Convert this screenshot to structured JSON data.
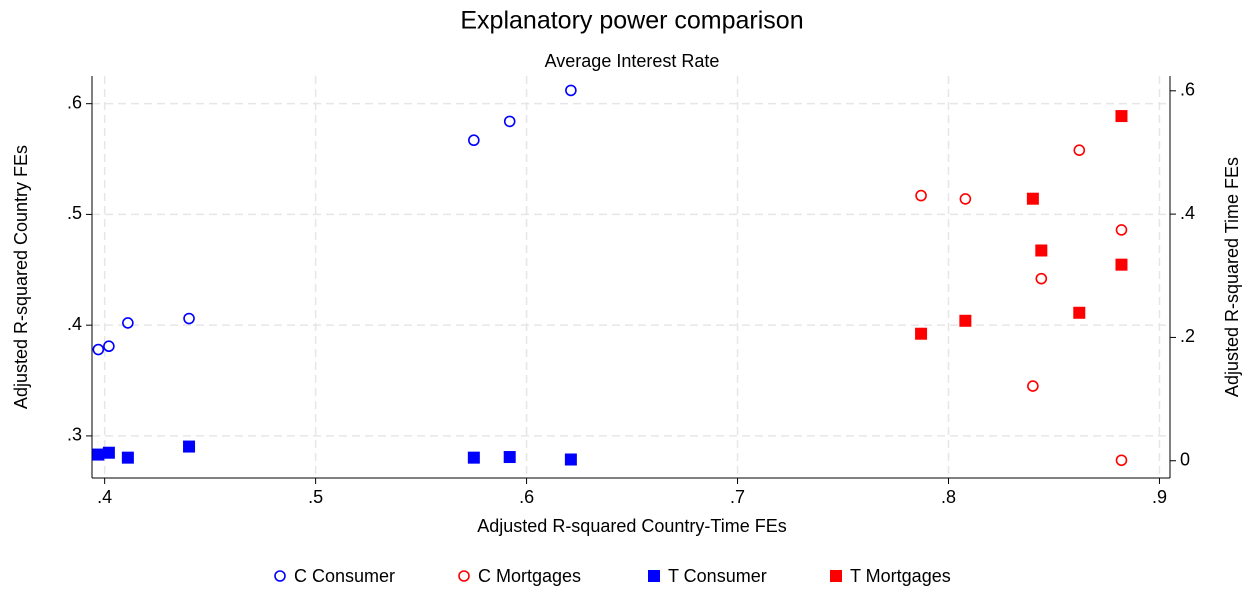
{
  "chart_data": {
    "type": "scatter",
    "title": "Explanatory power comparison",
    "subtitle": "Average Interest Rate",
    "x_label": "Adjusted R-squared Country-Time FEs",
    "y_label": "Adjusted R-squared Country FEs",
    "y2_label": "Adjusted R-squared Time FEs",
    "xlim": [
      0.394,
      0.905
    ],
    "xticks": [
      {
        "value": 0.4,
        "label": ".4"
      },
      {
        "value": 0.5,
        "label": ".5"
      },
      {
        "value": 0.6,
        "label": ".6"
      },
      {
        "value": 0.7,
        "label": ".7"
      },
      {
        "value": 0.8,
        "label": ".8"
      },
      {
        "value": 0.9,
        "label": ".9"
      }
    ],
    "ylim": [
      0.262,
      0.625
    ],
    "yticks": [
      {
        "value": 0.3,
        "label": ".3"
      },
      {
        "value": 0.4,
        "label": ".4"
      },
      {
        "value": 0.5,
        "label": ".5"
      },
      {
        "value": 0.6,
        "label": ".6"
      }
    ],
    "y2lim": [
      -0.028,
      0.624
    ],
    "y2ticks": [
      0,
      {
        "value": 0.2,
        "label": ".2"
      },
      {
        "value": 0.4,
        "label": ".4"
      },
      {
        "value": 0.6,
        "label": ".6"
      }
    ],
    "grid": true,
    "legend": "bottom",
    "series": [
      {
        "name": "C Consumer",
        "color": "#0000ff",
        "marker": "circle-open",
        "axis": "y",
        "x": [
          0.397,
          0.402,
          0.411,
          0.44,
          0.575,
          0.592,
          0.621
        ],
        "values": [
          0.378,
          0.381,
          0.402,
          0.406,
          0.567,
          0.584,
          0.612
        ]
      },
      {
        "name": "C Mortgages",
        "color": "#ff0000",
        "marker": "circle-open",
        "axis": "y",
        "x": [
          0.787,
          0.808,
          0.84,
          0.844,
          0.862,
          0.882,
          0.882
        ],
        "values": [
          0.517,
          0.514,
          0.345,
          0.442,
          0.558,
          0.486,
          0.278
        ]
      },
      {
        "name": "T Consumer",
        "color": "#0000ff",
        "marker": "square",
        "axis": "y2",
        "x": [
          0.397,
          0.402,
          0.411,
          0.44,
          0.575,
          0.592,
          0.621
        ],
        "values": [
          0.01,
          0.013,
          0.005,
          0.023,
          0.005,
          0.006,
          0.002
        ]
      },
      {
        "name": "T Mortgages",
        "color": "#ff0000",
        "marker": "square",
        "axis": "y2",
        "x": [
          0.787,
          0.808,
          0.84,
          0.844,
          0.862,
          0.882,
          0.882
        ],
        "values": [
          0.206,
          0.227,
          0.425,
          0.341,
          0.24,
          0.559,
          0.318
        ]
      }
    ]
  }
}
